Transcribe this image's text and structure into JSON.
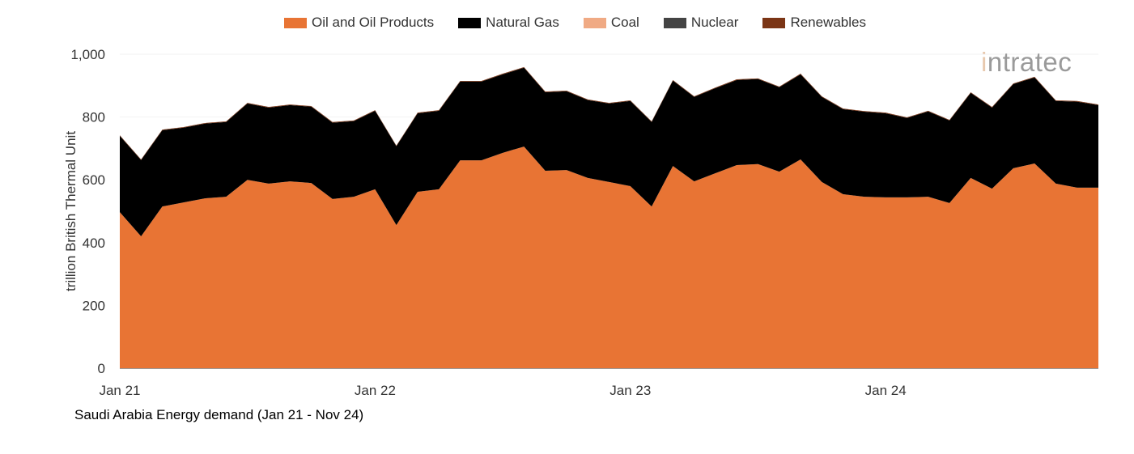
{
  "logo_text": "intratec",
  "caption": "Saudi Arabia Energy demand (Jan 21 - Nov 24)",
  "chart_data": {
    "type": "area",
    "stacked": true,
    "title": "Saudi Arabia Energy demand (Jan 21 - Nov 24)",
    "xlabel": "",
    "ylabel": "trillion British Thermal Unit",
    "ylim": [
      0,
      1000
    ],
    "yticks": [
      0,
      200,
      400,
      600,
      800,
      1000
    ],
    "ytick_labels": [
      "0",
      "200",
      "400",
      "600",
      "800",
      "1,000"
    ],
    "xtick_labels": [
      {
        "index": 0,
        "label": "Jan 21"
      },
      {
        "index": 12,
        "label": "Jan 22"
      },
      {
        "index": 24,
        "label": "Jan 23"
      },
      {
        "index": 36,
        "label": "Jan 24"
      }
    ],
    "legend_position": "top-center",
    "x": [
      "2021-01",
      "2021-02",
      "2021-03",
      "2021-04",
      "2021-05",
      "2021-06",
      "2021-07",
      "2021-08",
      "2021-09",
      "2021-10",
      "2021-11",
      "2021-12",
      "2022-01",
      "2022-02",
      "2022-03",
      "2022-04",
      "2022-05",
      "2022-06",
      "2022-07",
      "2022-08",
      "2022-09",
      "2022-10",
      "2022-11",
      "2022-12",
      "2023-01",
      "2023-02",
      "2023-03",
      "2023-04",
      "2023-05",
      "2023-06",
      "2023-07",
      "2023-08",
      "2023-09",
      "2023-10",
      "2023-11",
      "2023-12",
      "2024-01",
      "2024-02",
      "2024-03",
      "2024-04",
      "2024-05",
      "2024-06",
      "2024-07",
      "2024-08",
      "2024-09",
      "2024-10",
      "2024-11"
    ],
    "series": [
      {
        "name": "Oil and Oil Products",
        "color": "#E87434",
        "values": [
          497,
          420,
          515,
          528,
          541,
          546,
          600,
          588,
          595,
          590,
          539,
          546,
          570,
          456,
          562,
          570,
          662,
          662,
          686,
          706,
          629,
          631,
          606,
          593,
          580,
          515,
          644,
          595,
          621,
          647,
          650,
          626,
          665,
          593,
          554,
          546,
          544,
          544,
          546,
          526,
          606,
          572,
          637,
          652,
          588,
          575,
          575
        ]
      },
      {
        "name": "Natural Gas",
        "color": "#000000",
        "values": [
          243,
          243,
          243,
          238,
          238,
          238,
          243,
          242,
          243,
          243,
          243,
          241,
          250,
          251,
          250,
          250,
          251,
          251,
          250,
          251,
          250,
          251,
          248,
          250,
          271,
          269,
          272,
          269,
          271,
          271,
          271,
          269,
          271,
          271,
          271,
          271,
          268,
          253,
          272,
          263,
          271,
          258,
          268,
          274,
          263,
          274,
          263
        ]
      },
      {
        "name": "Coal",
        "color": "#F0AA84",
        "values": [
          0,
          0,
          0,
          0,
          0,
          0,
          0,
          0,
          0,
          0,
          0,
          0,
          0,
          0,
          0,
          0,
          0,
          0,
          0,
          0,
          0,
          0,
          0,
          0,
          0,
          0,
          0,
          0,
          0,
          0,
          0,
          0,
          0,
          0,
          0,
          0,
          0,
          0,
          0,
          0,
          0,
          0,
          0,
          0,
          0,
          0,
          0
        ]
      },
      {
        "name": "Nuclear",
        "color": "#444444",
        "values": [
          0,
          0,
          0,
          0,
          0,
          0,
          0,
          0,
          0,
          0,
          0,
          0,
          0,
          0,
          0,
          0,
          0,
          0,
          0,
          0,
          0,
          0,
          0,
          0,
          0,
          0,
          0,
          0,
          0,
          0,
          0,
          0,
          0,
          0,
          0,
          0,
          0,
          0,
          0,
          0,
          0,
          0,
          0,
          0,
          0,
          0,
          0
        ]
      },
      {
        "name": "Renewables",
        "color": "#7B3515",
        "values": [
          2,
          2,
          2,
          2,
          2,
          2,
          2,
          2,
          2,
          2,
          2,
          2,
          2,
          2,
          2,
          2,
          2,
          2,
          2,
          2,
          2,
          2,
          2,
          2,
          2,
          2,
          2,
          2,
          2,
          2,
          2,
          2,
          2,
          2,
          2,
          2,
          2,
          2,
          2,
          2,
          2,
          2,
          2,
          2,
          2,
          2,
          2
        ]
      }
    ]
  }
}
